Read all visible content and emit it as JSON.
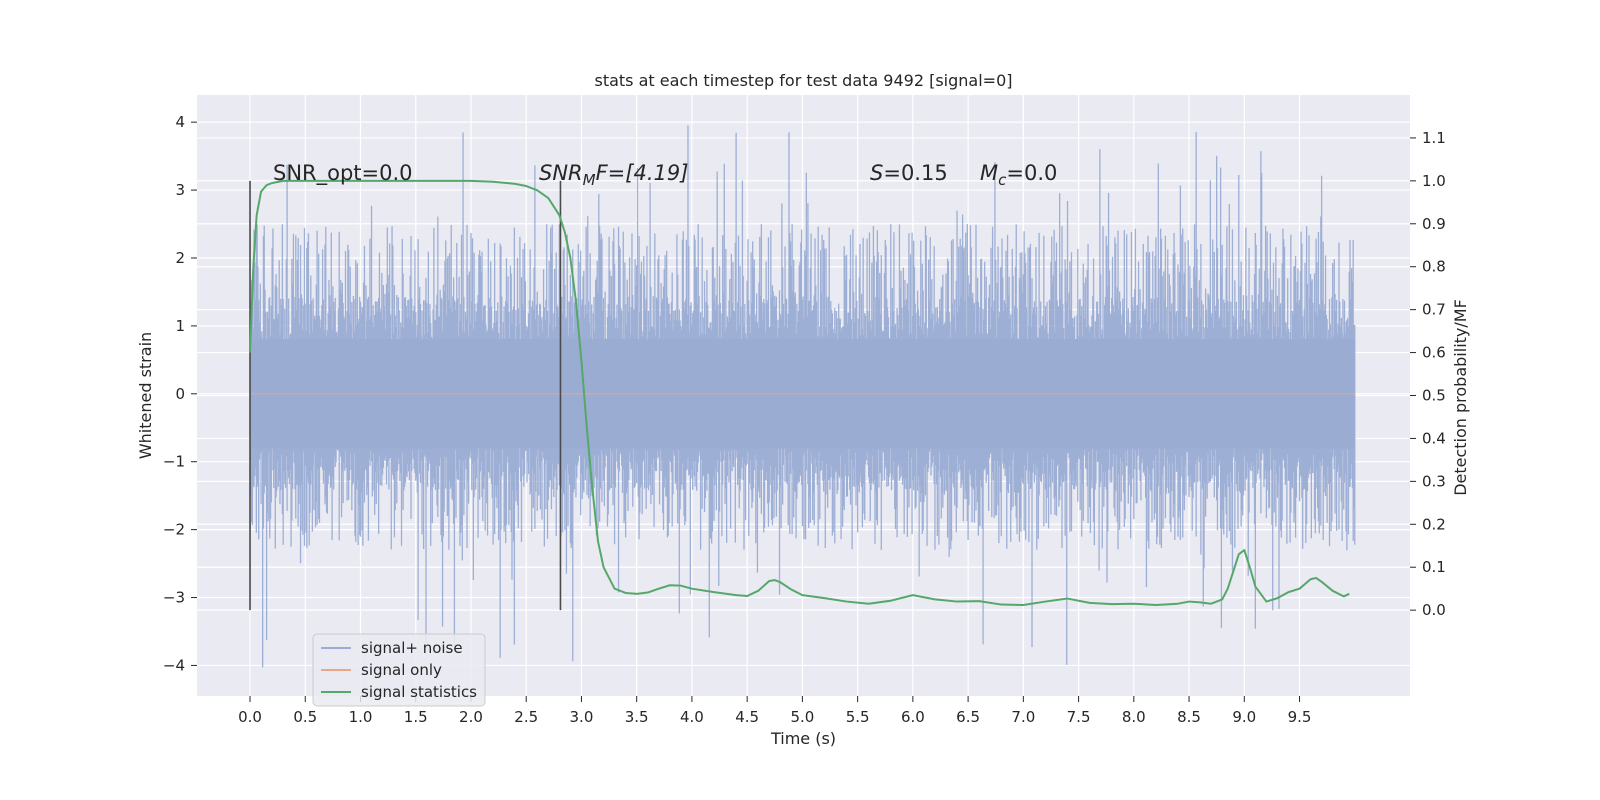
{
  "chart_data": {
    "type": "line",
    "title": "stats at each timestep for test data 9492 [signal=0]",
    "xlabel": "Time (s)",
    "ylabel": "Whitened strain",
    "ylabel_right": "Detection probability/MF",
    "xlim": [
      -0.48,
      10.5
    ],
    "ylim": [
      -4.45,
      4.4
    ],
    "ylim_right": [
      -0.2,
      1.2
    ],
    "x_ticks": [
      0.0,
      0.5,
      1.0,
      1.5,
      2.0,
      2.5,
      3.0,
      3.5,
      4.0,
      4.5,
      5.0,
      5.5,
      6.0,
      6.5,
      7.0,
      7.5,
      8.0,
      8.5,
      9.0,
      9.5
    ],
    "x_tick_labels": [
      "0.0",
      "0.5",
      "1.0",
      "1.5",
      "2.0",
      "2.5",
      "3.0",
      "3.5",
      "4.0",
      "4.5",
      "5.0",
      "5.5",
      "6.0",
      "6.5",
      "7.0",
      "7.5",
      "8.0",
      "8.5",
      "9.0",
      "9.5"
    ],
    "y_ticks": [
      -4,
      -3,
      -2,
      -1,
      0,
      1,
      2,
      3,
      4
    ],
    "y_tick_labels": [
      "−4",
      "−3",
      "−2",
      "−1",
      "0",
      "1",
      "2",
      "3",
      "4"
    ],
    "y_right_ticks": [
      0.0,
      0.1,
      0.2,
      0.3,
      0.4,
      0.5,
      0.6,
      0.7,
      0.8,
      0.9,
      1.0,
      1.1
    ],
    "y_right_tick_labels": [
      "0.0",
      "0.1",
      "0.2",
      "0.3",
      "0.4",
      "0.5",
      "0.6",
      "0.7",
      "0.8",
      "0.9",
      "1.0",
      "1.1"
    ],
    "grid": true,
    "legend_position": "lower-left",
    "colors": {
      "background": "#EAEAF2",
      "grid": "#FFFFFF",
      "noise": "#9AACD3",
      "signal_only": "#E8A888",
      "statistics": "#55A868",
      "marker_line": "#4A4A4A"
    },
    "annotations": {
      "snr_opt": "SNR_opt=0.0",
      "snr_mf_prefix": "SNR",
      "snr_mf_sub": "M",
      "snr_mf_suffix": "F=[4.19]",
      "s_var": "S",
      "s_value": "=0.15",
      "mc_var": "M",
      "mc_sub": "c",
      "mc_value": "=0.0"
    },
    "vertical_markers": [
      0.0,
      2.81
    ],
    "series": [
      {
        "name": "signal+ noise",
        "t_range": [
          0.0,
          10.0
        ],
        "envelope": {
          "dense_band": [
            -1.3,
            1.3
          ],
          "typical_peak": [
            -2.3,
            2.5
          ],
          "extreme": [
            -4.05,
            4.05
          ]
        }
      },
      {
        "name": "signal only",
        "x": [
          0.0,
          10.0
        ],
        "y": [
          0.0,
          0.0
        ]
      },
      {
        "name": "signal statistics",
        "x": [
          0.0,
          0.03,
          0.06,
          0.1,
          0.15,
          0.2,
          0.3,
          0.5,
          1.0,
          1.5,
          2.0,
          2.2,
          2.4,
          2.5,
          2.6,
          2.7,
          2.8,
          2.85,
          2.9,
          2.95,
          3.0,
          3.05,
          3.1,
          3.15,
          3.2,
          3.3,
          3.4,
          3.5,
          3.6,
          3.7,
          3.8,
          3.9,
          4.0,
          4.2,
          4.4,
          4.5,
          4.6,
          4.7,
          4.75,
          4.8,
          4.9,
          5.0,
          5.2,
          5.4,
          5.6,
          5.8,
          6.0,
          6.2,
          6.4,
          6.6,
          6.8,
          7.0,
          7.2,
          7.4,
          7.6,
          7.8,
          8.0,
          8.2,
          8.4,
          8.5,
          8.6,
          8.7,
          8.8,
          8.85,
          8.9,
          8.95,
          9.0,
          9.05,
          9.1,
          9.2,
          9.3,
          9.4,
          9.5,
          9.6,
          9.65,
          9.7,
          9.8,
          9.9,
          9.95
        ],
        "y": [
          0.6,
          0.8,
          0.92,
          0.975,
          0.99,
          0.995,
          1.0,
          1.0,
          1.0,
          1.0,
          1.0,
          0.998,
          0.993,
          0.988,
          0.978,
          0.96,
          0.92,
          0.88,
          0.82,
          0.72,
          0.58,
          0.42,
          0.28,
          0.16,
          0.1,
          0.05,
          0.04,
          0.038,
          0.041,
          0.05,
          0.058,
          0.057,
          0.05,
          0.042,
          0.035,
          0.033,
          0.045,
          0.068,
          0.07,
          0.065,
          0.048,
          0.035,
          0.028,
          0.02,
          0.015,
          0.022,
          0.035,
          0.025,
          0.02,
          0.021,
          0.013,
          0.012,
          0.02,
          0.027,
          0.017,
          0.014,
          0.015,
          0.012,
          0.015,
          0.02,
          0.018,
          0.015,
          0.025,
          0.05,
          0.09,
          0.13,
          0.14,
          0.1,
          0.055,
          0.02,
          0.028,
          0.042,
          0.05,
          0.072,
          0.075,
          0.066,
          0.045,
          0.032,
          0.038
        ]
      }
    ]
  }
}
